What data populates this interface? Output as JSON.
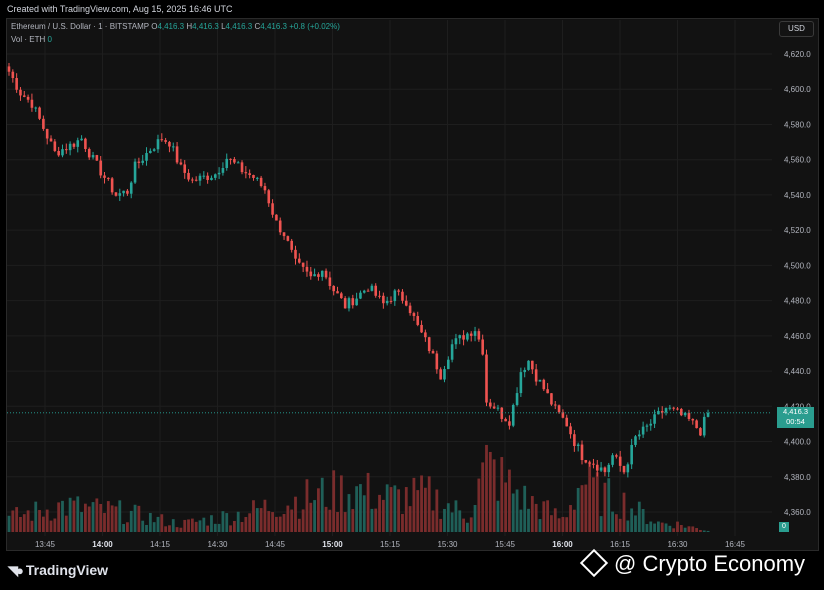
{
  "header": {
    "created": "Created with TradingView.com, Aug 15, 2025 16:46 UTC"
  },
  "legend": {
    "symbol": "Ethereum / U.S. Dollar · 1 · BITSTAMP",
    "o_label": "O",
    "o": "4,416.3",
    "h_label": "H",
    "h": "4,416.3",
    "l_label": "L",
    "l": "4,416.3",
    "c_label": "C",
    "c": "4,416.3",
    "change": "+0.8 (+0.02%)",
    "vol_label": "Vol · ETH",
    "vol": "0"
  },
  "currency_button": "USD",
  "price_tag": {
    "price": "4,416.3",
    "countdown": "00:54"
  },
  "volume_tag": "0",
  "branding": {
    "tradingview": "TradingView",
    "watermark": "@ Crypto Economy"
  },
  "colors": {
    "up": "#26a69a",
    "down": "#ef5350",
    "background": "#121212"
  },
  "chart_data": {
    "type": "candlestick",
    "timeframe": "1 minute",
    "y_ticks": [
      "4,620.0",
      "4,600.0",
      "4,580.0",
      "4,560.0",
      "4,540.0",
      "4,520.0",
      "4,500.0",
      "4,480.0",
      "4,460.0",
      "4,440.0",
      "4,420.0",
      "4,400.0",
      "4,380.0",
      "4,360.0"
    ],
    "x_ticks": [
      "13:45",
      "14:00",
      "14:15",
      "14:30",
      "14:45",
      "15:00",
      "15:15",
      "15:30",
      "15:45",
      "16:00",
      "16:15",
      "16:30",
      "16:45"
    ],
    "bold_x_ticks": [
      "14:00",
      "15:00",
      "16:00"
    ],
    "ylim": [
      4352,
      4628
    ],
    "current_price": 4416.3,
    "close_path": [
      [
        0,
        4610
      ],
      [
        3,
        4598
      ],
      [
        6,
        4592
      ],
      [
        9,
        4578
      ],
      [
        12,
        4564
      ],
      [
        16,
        4568
      ],
      [
        19,
        4572
      ],
      [
        22,
        4560
      ],
      [
        25,
        4550
      ],
      [
        28,
        4540
      ],
      [
        31,
        4542
      ],
      [
        33,
        4556
      ],
      [
        37,
        4566
      ],
      [
        40,
        4572
      ],
      [
        42,
        4570
      ],
      [
        45,
        4555
      ],
      [
        48,
        4548
      ],
      [
        51,
        4550
      ],
      [
        54,
        4552
      ],
      [
        57,
        4561
      ],
      [
        61,
        4554
      ],
      [
        64,
        4550
      ],
      [
        67,
        4543
      ],
      [
        70,
        4524
      ],
      [
        72,
        4518
      ],
      [
        75,
        4501
      ],
      [
        79,
        4493
      ],
      [
        82,
        4498
      ],
      [
        85,
        4486
      ],
      [
        88,
        4477
      ],
      [
        91,
        4482
      ],
      [
        94,
        4488
      ],
      [
        98,
        4478
      ],
      [
        101,
        4484
      ],
      [
        104,
        4480
      ],
      [
        107,
        4465
      ],
      [
        110,
        4453
      ],
      [
        113,
        4438
      ],
      [
        116,
        4455
      ],
      [
        119,
        4460
      ],
      [
        122,
        4464
      ],
      [
        124,
        4452
      ],
      [
        125,
        4423
      ],
      [
        127,
        4420
      ],
      [
        129,
        4415
      ],
      [
        131,
        4412
      ],
      [
        132,
        4420
      ],
      [
        134,
        4440
      ],
      [
        136,
        4446
      ],
      [
        138,
        4437
      ],
      [
        140,
        4430
      ],
      [
        143,
        4418
      ],
      [
        146,
        4410
      ],
      [
        148,
        4400
      ],
      [
        150,
        4392
      ],
      [
        153,
        4388
      ],
      [
        156,
        4383
      ],
      [
        158,
        4392
      ],
      [
        161,
        4383
      ],
      [
        164,
        4402
      ],
      [
        167,
        4408
      ],
      [
        170,
        4415
      ],
      [
        172,
        4419
      ],
      [
        175,
        4416
      ],
      [
        178,
        4412
      ],
      [
        181,
        4406
      ],
      [
        183,
        4416.3
      ]
    ],
    "volume_bars": [
      {
        "x_minute": 0,
        "volume": 22
      },
      {
        "x_minute": 14,
        "volume": 40
      },
      {
        "x_minute": 30,
        "volume": 30
      },
      {
        "x_minute": 45,
        "volume": 12
      },
      {
        "x_minute": 61,
        "volume": 28
      },
      {
        "x_minute": 70,
        "volume": 42
      },
      {
        "x_minute": 80,
        "volume": 55
      },
      {
        "x_minute": 90,
        "volume": 65
      },
      {
        "x_minute": 100,
        "volume": 52
      },
      {
        "x_minute": 110,
        "volume": 56
      },
      {
        "x_minute": 120,
        "volume": 24
      },
      {
        "x_minute": 125,
        "volume": 100
      },
      {
        "x_minute": 130,
        "volume": 75
      },
      {
        "x_minute": 135,
        "volume": 50
      },
      {
        "x_minute": 145,
        "volume": 20
      },
      {
        "x_minute": 150,
        "volume": 80
      },
      {
        "x_minute": 155,
        "volume": 55
      },
      {
        "x_minute": 160,
        "volume": 48
      },
      {
        "x_minute": 165,
        "volume": 30
      },
      {
        "x_minute": 170,
        "volume": 14
      },
      {
        "x_minute": 175,
        "volume": 12
      },
      {
        "x_minute": 183,
        "volume": 2
      }
    ],
    "volume_max": 100,
    "grid": true
  }
}
